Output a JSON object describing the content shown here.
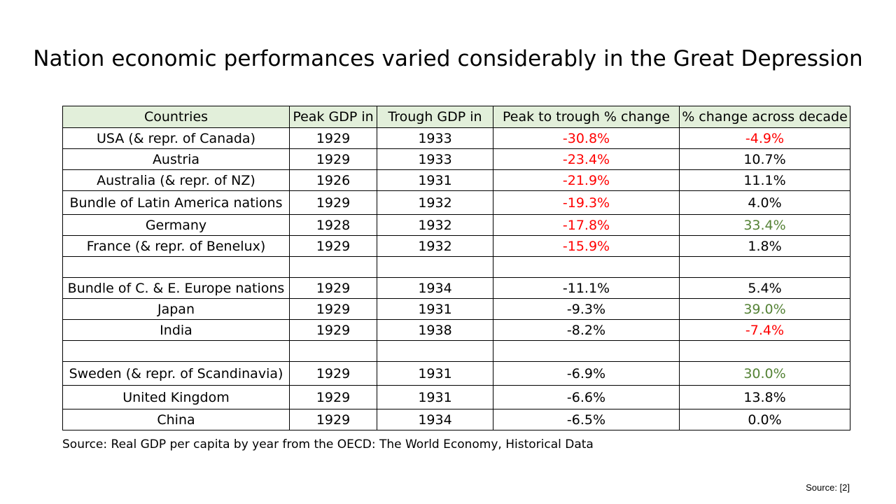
{
  "slide": {
    "title": "Nation economic performances varied considerably in the Great Depression",
    "source_note": "Source: Real GDP per capita by year from the OECD: The World Economy, Historical Data",
    "source_ref": "Source: [2]"
  },
  "colors": {
    "header_bg": "#e2efda",
    "negative_highlight": "#ff0000",
    "positive_highlight": "#548235",
    "border": "#000000"
  },
  "table": {
    "headers": [
      "Countries",
      "Peak GDP in",
      "Trough GDP in",
      "Peak to trough % change",
      "% change across decade"
    ],
    "rows": [
      {
        "country": "USA  (& repr. of Canada)",
        "peak": "1929",
        "trough": "1933",
        "peak_to_trough": "-30.8%",
        "decade": "-4.9%"
      },
      {
        "country": "Austria",
        "peak": "1929",
        "trough": "1933",
        "peak_to_trough": "-23.4%",
        "decade": "10.7%"
      },
      {
        "country": "Australia (& repr. of NZ)",
        "peak": "1926",
        "trough": "1931",
        "peak_to_trough": "-21.9%",
        "decade": "11.1%"
      },
      {
        "country": "Bundle of Latin America nations",
        "peak": "1929",
        "trough": "1932",
        "peak_to_trough": "-19.3%",
        "decade": "4.0%"
      },
      {
        "country": "Germany",
        "peak": "1928",
        "trough": "1932",
        "peak_to_trough": "-17.8%",
        "decade": "33.4%"
      },
      {
        "country": "France (& repr. of Benelux)",
        "peak": "1929",
        "trough": "1932",
        "peak_to_trough": "-15.9%",
        "decade": "1.8%"
      },
      {
        "country": "",
        "peak": "",
        "trough": "",
        "peak_to_trough": "",
        "decade": ""
      },
      {
        "country": "Bundle of C. & E. Europe nations",
        "peak": "1929",
        "trough": "1934",
        "peak_to_trough": "-11.1%",
        "decade": "5.4%"
      },
      {
        "country": "Japan",
        "peak": "1929",
        "trough": "1931",
        "peak_to_trough": "-9.3%",
        "decade": "39.0%"
      },
      {
        "country": "India",
        "peak": "1929",
        "trough": "1938",
        "peak_to_trough": "-8.2%",
        "decade": "-7.4%"
      },
      {
        "country": "",
        "peak": "",
        "trough": "",
        "peak_to_trough": "",
        "decade": ""
      },
      {
        "country": "Sweden  (& repr. of Scandinavia)",
        "peak": "1929",
        "trough": "1931",
        "peak_to_trough": "-6.9%",
        "decade": "30.0%"
      },
      {
        "country": "United Kingdom",
        "peak": "1929",
        "trough": "1931",
        "peak_to_trough": "-6.6%",
        "decade": "13.8%"
      },
      {
        "country": "China",
        "peak": "1929",
        "trough": "1934",
        "peak_to_trough": "-6.5%",
        "decade": "0.0%"
      }
    ]
  }
}
